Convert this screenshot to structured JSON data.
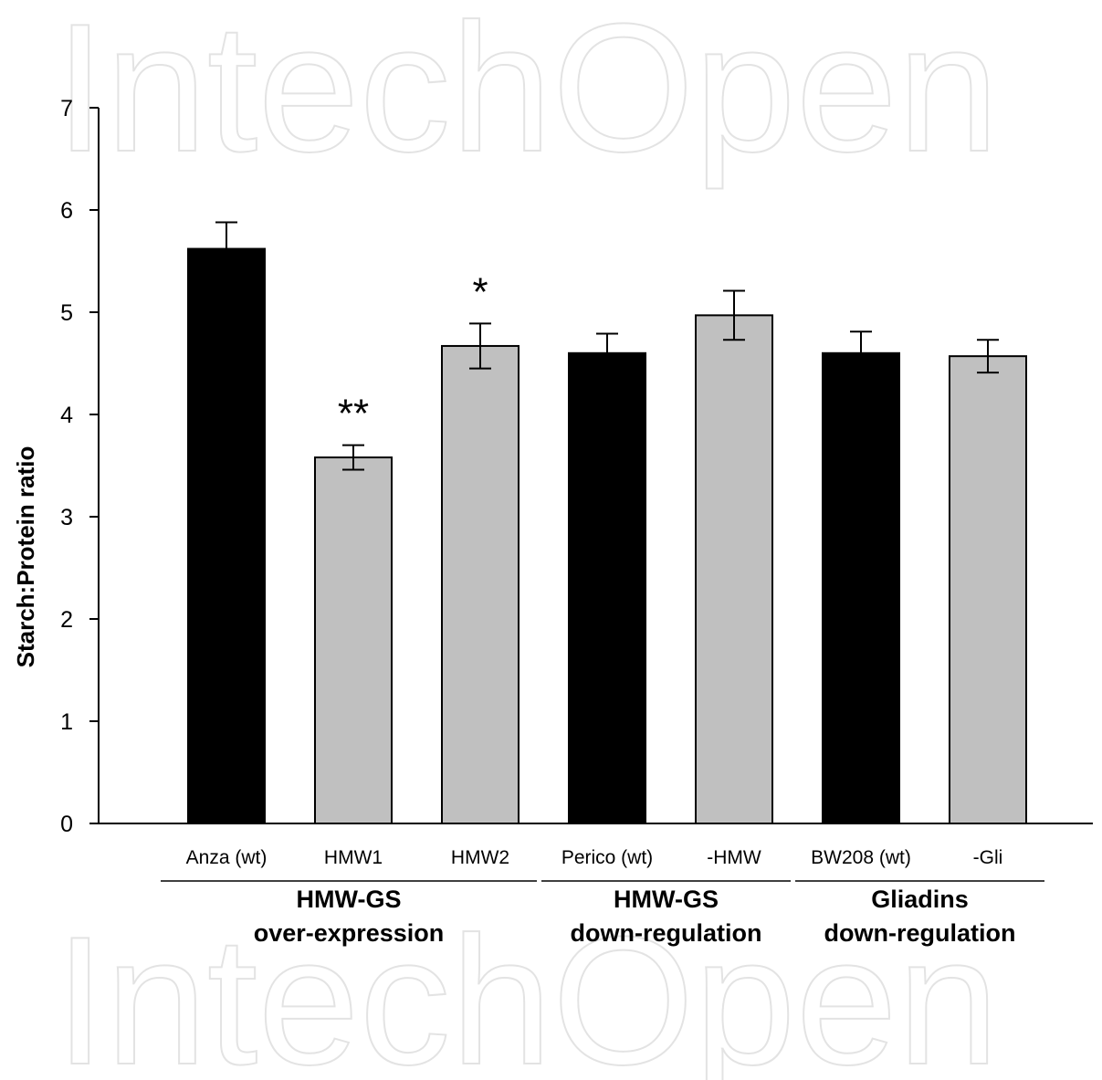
{
  "watermark": {
    "text": "IntechOpen"
  },
  "chart_data": {
    "type": "bar",
    "ylabel": "Starch:Protein ratio",
    "xlabel": "",
    "ylim": [
      0,
      7
    ],
    "yticks": [
      0,
      1,
      2,
      3,
      4,
      5,
      6,
      7
    ],
    "grid": false,
    "categories": [
      "Anza (wt)",
      "HMW1",
      "HMW2",
      "Perico (wt)",
      "-HMW",
      "BW208 (wt)",
      "-Gli"
    ],
    "values": [
      5.62,
      3.58,
      4.67,
      4.6,
      4.97,
      4.6,
      4.57
    ],
    "errors": [
      0.26,
      0.12,
      0.22,
      0.19,
      0.24,
      0.21,
      0.16
    ],
    "bar_colors": [
      "#000000",
      "#c0c0c0",
      "#c0c0c0",
      "#000000",
      "#c0c0c0",
      "#000000",
      "#c0c0c0"
    ],
    "annotations": [
      "",
      "**",
      "*",
      "",
      "",
      "",
      ""
    ],
    "groups": [
      {
        "label_line1": "HMW-GS",
        "label_line2": "over-expression",
        "start": 0,
        "end": 2
      },
      {
        "label_line1": "HMW-GS",
        "label_line2": "down-regulation",
        "start": 3,
        "end": 4
      },
      {
        "label_line1": "Gliadins",
        "label_line2": "down-regulation",
        "start": 5,
        "end": 6
      }
    ]
  }
}
